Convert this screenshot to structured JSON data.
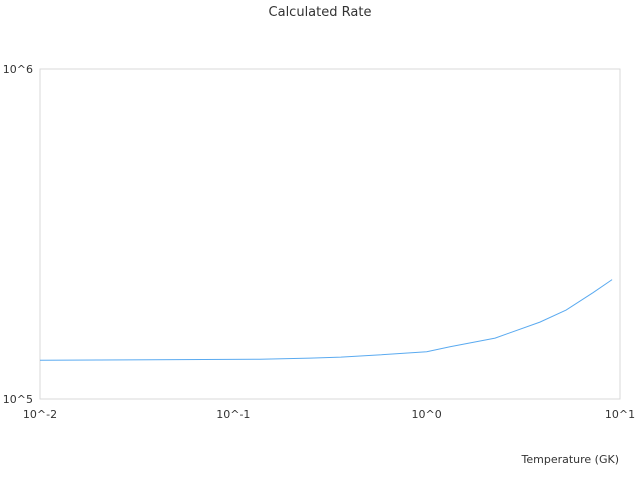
{
  "chart_data": {
    "type": "line",
    "title": "Calculated Rate",
    "xlabel": "Temperature (GK)",
    "ylabel": "",
    "x_scale": "log",
    "y_scale": "log",
    "xlim": [
      0.01,
      10
    ],
    "ylim": [
      100000,
      1000000
    ],
    "x_ticks": [
      {
        "value": 0.01,
        "label": "10^-2"
      },
      {
        "value": 0.1,
        "label": "10^-1"
      },
      {
        "value": 1,
        "label": "10^0"
      },
      {
        "value": 10,
        "label": "10^1"
      }
    ],
    "y_ticks": [
      {
        "value": 100000,
        "label": "10^5"
      },
      {
        "value": 1000000,
        "label": "10^6"
      }
    ],
    "grid": false,
    "series": [
      {
        "color": "#5aaaf0",
        "x": [
          0.01,
          0.137,
          0.25,
          0.36,
          0.57,
          1.0,
          1.32,
          2.26,
          3.85,
          5.26,
          7.25,
          9.1
        ],
        "y": [
          131000,
          132000,
          133000,
          134000,
          136000,
          139000,
          144000,
          153000,
          171000,
          186000,
          210000,
          230000
        ]
      }
    ]
  }
}
